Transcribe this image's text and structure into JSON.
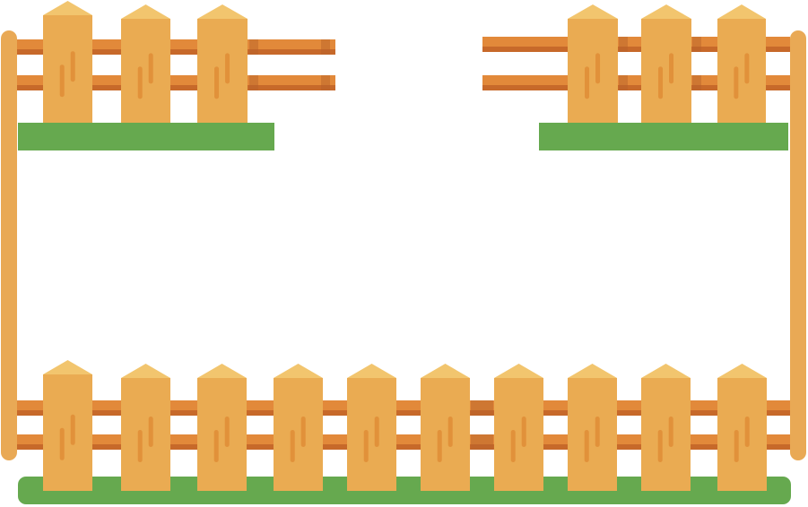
{
  "scene": {
    "subject": "fence-frame-illustration",
    "colors": {
      "background": "#ffffff",
      "picket": "#eaab52",
      "picket_cap": "#f2c56e",
      "grain": "#e1913a",
      "rail": "#e2893a",
      "rail_shadow": "#c7692a",
      "rail_dark_band": "#b5612a",
      "post": "#e9a955",
      "grass": "#66a94f"
    }
  }
}
